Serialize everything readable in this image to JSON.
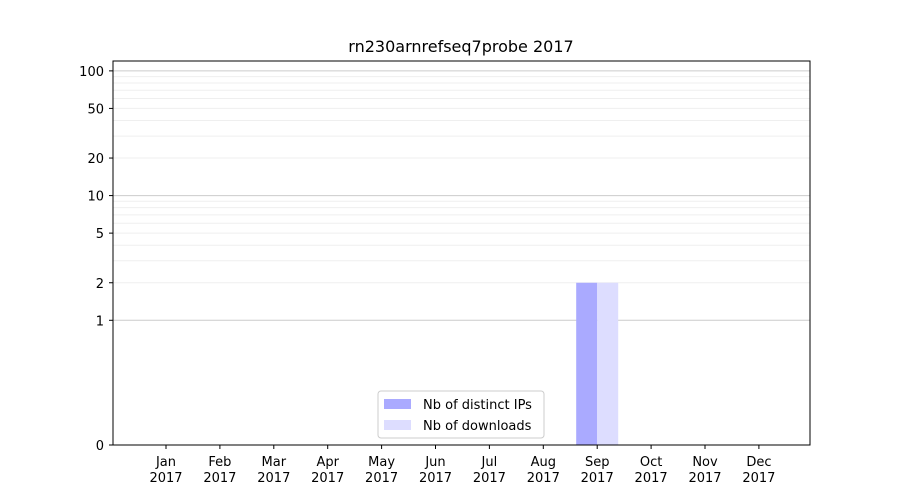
{
  "chart_data": {
    "type": "bar",
    "title": "rn230arnrefseq7probe 2017",
    "xlabel": "",
    "ylabel": "",
    "categories": [
      [
        "Jan",
        "2017"
      ],
      [
        "Feb",
        "2017"
      ],
      [
        "Mar",
        "2017"
      ],
      [
        "Apr",
        "2017"
      ],
      [
        "May",
        "2017"
      ],
      [
        "Jun",
        "2017"
      ],
      [
        "Jul",
        "2017"
      ],
      [
        "Aug",
        "2017"
      ],
      [
        "Sep",
        "2017"
      ],
      [
        "Oct",
        "2017"
      ],
      [
        "Nov",
        "2017"
      ],
      [
        "Dec",
        "2017"
      ]
    ],
    "series": [
      {
        "name": "Nb of distinct IPs",
        "color": "#aaaaff",
        "values": [
          0,
          0,
          0,
          0,
          0,
          0,
          0,
          0,
          2,
          0,
          0,
          0
        ]
      },
      {
        "name": "Nb of downloads",
        "color": "#ddddff",
        "values": [
          0,
          0,
          0,
          0,
          0,
          0,
          0,
          0,
          2,
          0,
          0,
          0
        ]
      }
    ],
    "yscale": "symlog",
    "ylim": [
      0,
      120
    ],
    "ytick_labels": [
      "0",
      "1",
      "2",
      "5",
      "10",
      "20",
      "50",
      "100"
    ],
    "grid": true,
    "legend_position": "bottom-center"
  }
}
